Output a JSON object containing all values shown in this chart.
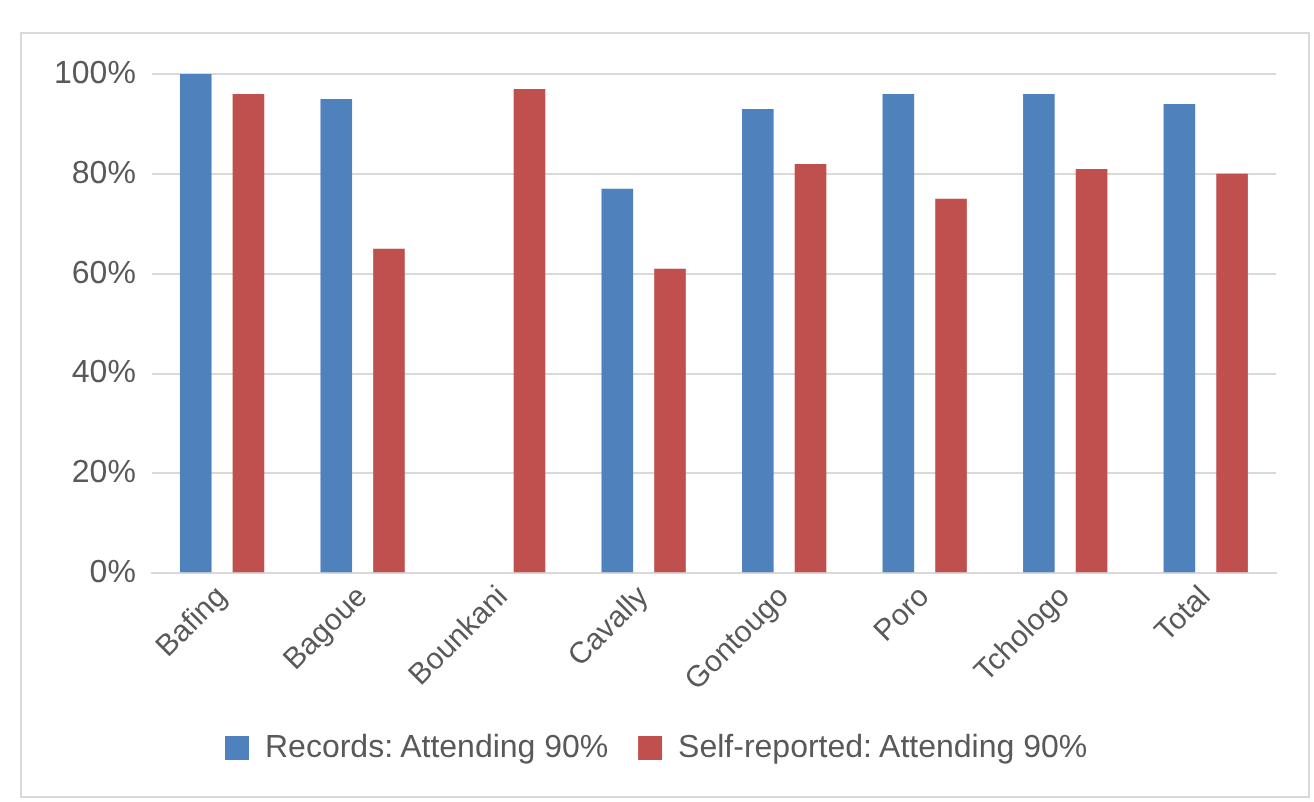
{
  "chart_data": {
    "type": "bar",
    "categories": [
      "Bafing",
      "Bagoue",
      "Bounkani",
      "Cavally",
      "Gontougo",
      "Poro",
      "Tchologo",
      "Total"
    ],
    "series": [
      {
        "name": "Records: Attending 90%",
        "color": "#4f81bd",
        "values": [
          100,
          95,
          null,
          77,
          93,
          96,
          96,
          94
        ]
      },
      {
        "name": "Self-reported: Attending 90%",
        "color": "#c0504d",
        "values": [
          96,
          65,
          97,
          61,
          82,
          75,
          81,
          80
        ]
      }
    ],
    "ylim": [
      0,
      100
    ],
    "yticks": [
      {
        "value": 0,
        "label": "0%"
      },
      {
        "value": 20,
        "label": "20%"
      },
      {
        "value": 40,
        "label": "40%"
      },
      {
        "value": 60,
        "label": "60%"
      },
      {
        "value": 80,
        "label": "80%"
      },
      {
        "value": 100,
        "label": "100%"
      }
    ],
    "grid": "y",
    "legend": "bottom"
  }
}
